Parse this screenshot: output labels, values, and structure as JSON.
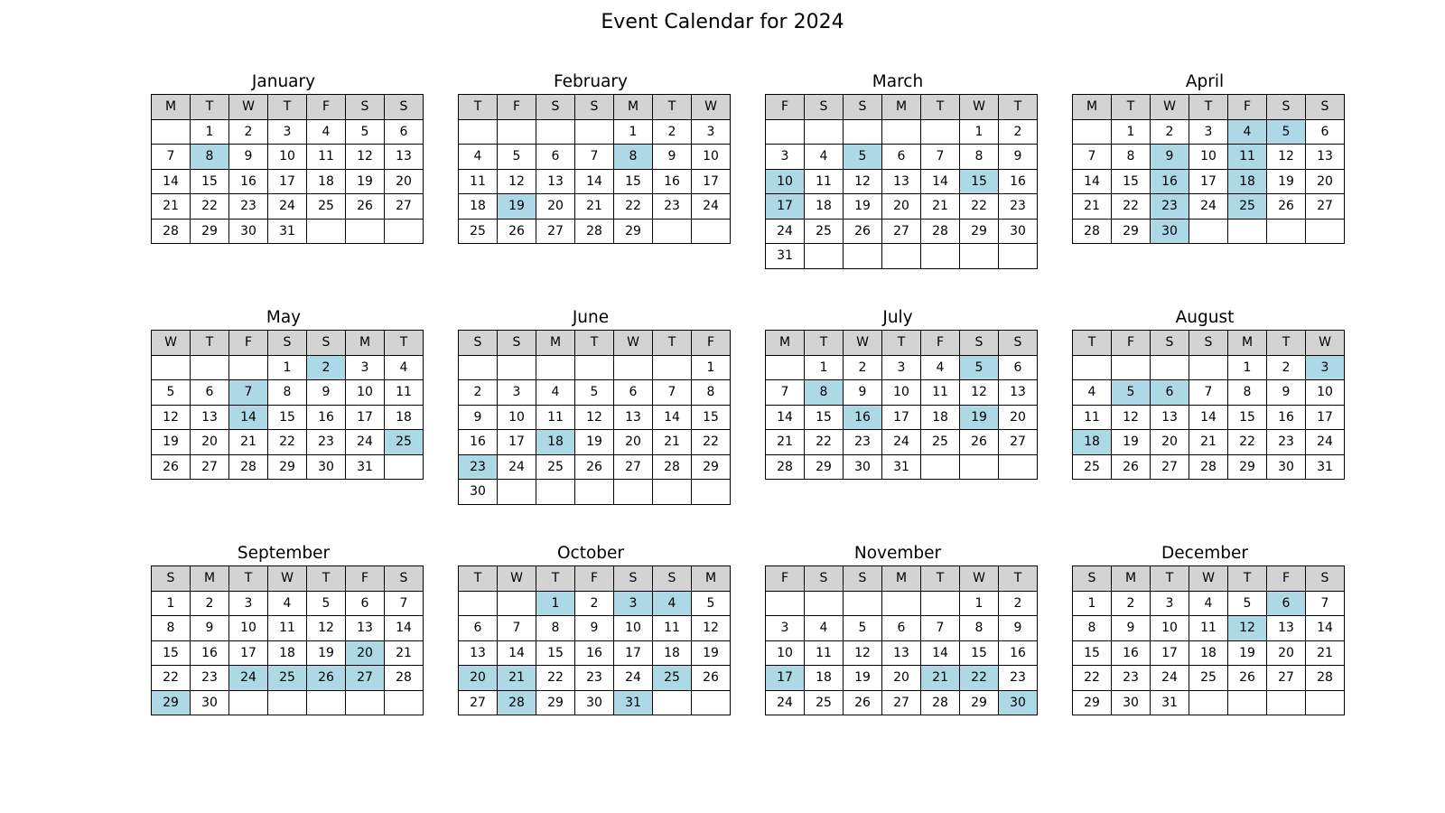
{
  "title": "Event Calendar for 2024",
  "colors": {
    "header_background": "#d3d3d3",
    "event_highlight": "#add8e6",
    "cell_background": "#ffffff"
  },
  "chart_data": {
    "type": "table",
    "title": "Event Calendar for 2024",
    "year": 2024,
    "months": [
      {
        "name": "January",
        "weekday_headers": [
          "M",
          "T",
          "W",
          "T",
          "F",
          "S",
          "S"
        ],
        "start_offset": 1,
        "days": 31,
        "event_days": [
          8
        ]
      },
      {
        "name": "February",
        "weekday_headers": [
          "T",
          "F",
          "S",
          "S",
          "M",
          "T",
          "W"
        ],
        "start_offset": 4,
        "days": 29,
        "event_days": [
          8,
          19
        ]
      },
      {
        "name": "March",
        "weekday_headers": [
          "F",
          "S",
          "S",
          "M",
          "T",
          "W",
          "T"
        ],
        "start_offset": 5,
        "days": 31,
        "event_days": [
          5,
          10,
          15,
          17
        ]
      },
      {
        "name": "April",
        "weekday_headers": [
          "M",
          "T",
          "W",
          "T",
          "F",
          "S",
          "S"
        ],
        "start_offset": 1,
        "days": 30,
        "event_days": [
          4,
          5,
          9,
          11,
          16,
          18,
          23,
          25,
          30
        ]
      },
      {
        "name": "May",
        "weekday_headers": [
          "W",
          "T",
          "F",
          "S",
          "S",
          "M",
          "T"
        ],
        "start_offset": 3,
        "days": 31,
        "event_days": [
          2,
          7,
          14,
          25
        ]
      },
      {
        "name": "June",
        "weekday_headers": [
          "S",
          "S",
          "M",
          "T",
          "W",
          "T",
          "F"
        ],
        "start_offset": 6,
        "days": 30,
        "event_days": [
          18,
          23
        ]
      },
      {
        "name": "July",
        "weekday_headers": [
          "M",
          "T",
          "W",
          "T",
          "F",
          "S",
          "S"
        ],
        "start_offset": 1,
        "days": 31,
        "event_days": [
          5,
          8,
          16,
          19
        ]
      },
      {
        "name": "August",
        "weekday_headers": [
          "T",
          "F",
          "S",
          "S",
          "M",
          "T",
          "W"
        ],
        "start_offset": 4,
        "days": 31,
        "event_days": [
          3,
          5,
          6,
          18
        ]
      },
      {
        "name": "September",
        "weekday_headers": [
          "S",
          "M",
          "T",
          "W",
          "T",
          "F",
          "S"
        ],
        "start_offset": 0,
        "days": 30,
        "event_days": [
          20,
          24,
          25,
          26,
          27,
          29
        ]
      },
      {
        "name": "October",
        "weekday_headers": [
          "T",
          "W",
          "T",
          "F",
          "S",
          "S",
          "M"
        ],
        "start_offset": 2,
        "days": 31,
        "event_days": [
          1,
          3,
          4,
          20,
          21,
          25,
          28,
          31
        ]
      },
      {
        "name": "November",
        "weekday_headers": [
          "F",
          "S",
          "S",
          "M",
          "T",
          "W",
          "T"
        ],
        "start_offset": 5,
        "days": 30,
        "event_days": [
          17,
          21,
          22,
          30
        ]
      },
      {
        "name": "December",
        "weekday_headers": [
          "S",
          "M",
          "T",
          "W",
          "T",
          "F",
          "S"
        ],
        "start_offset": 0,
        "days": 31,
        "event_days": [
          6,
          12
        ]
      }
    ]
  }
}
